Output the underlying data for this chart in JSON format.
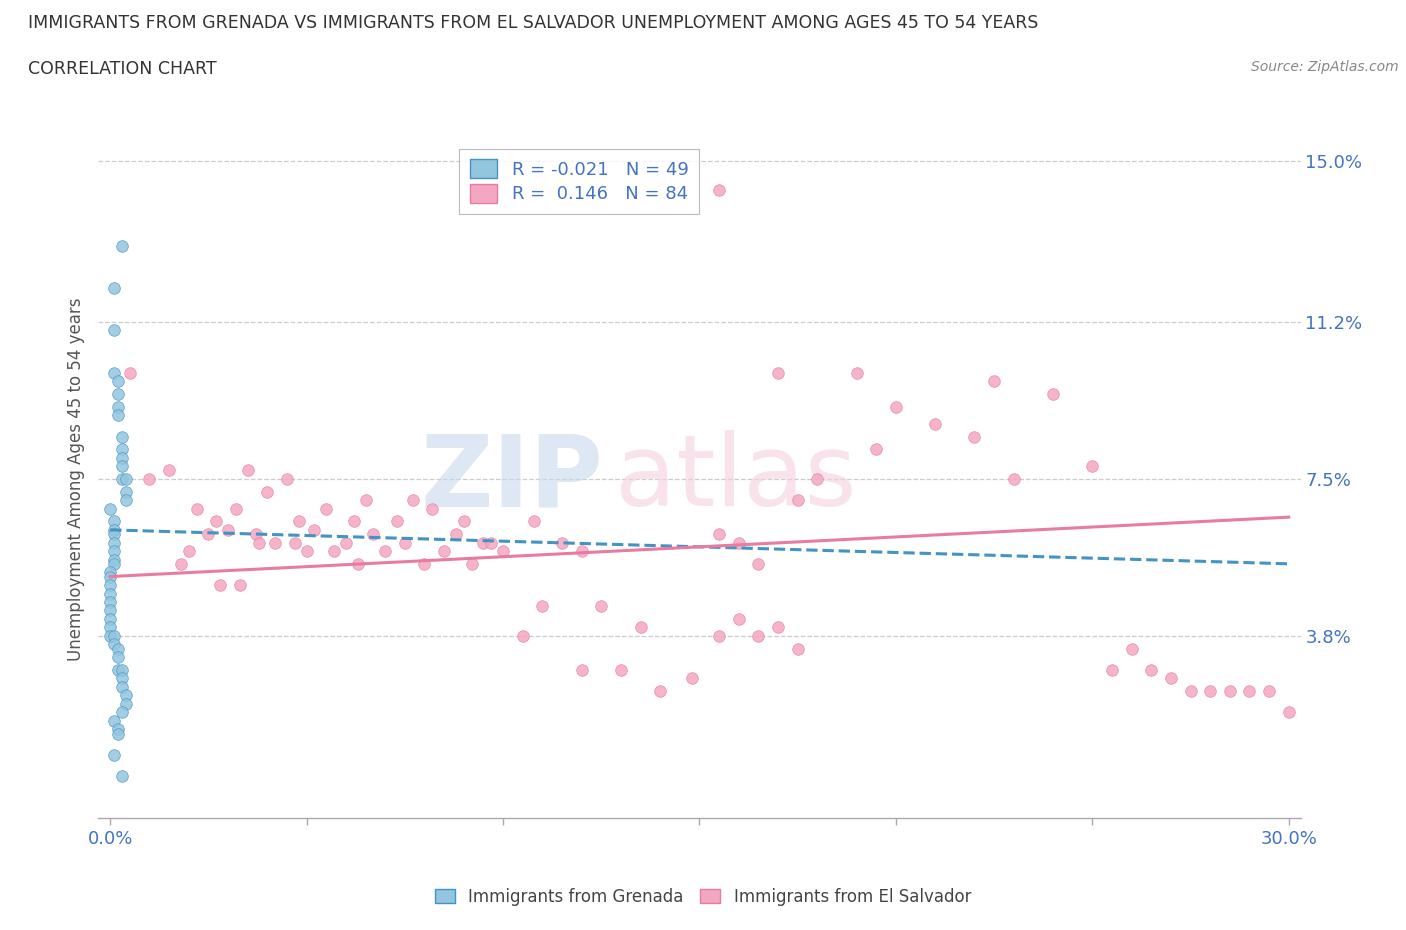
{
  "title_line1": "IMMIGRANTS FROM GRENADA VS IMMIGRANTS FROM EL SALVADOR UNEMPLOYMENT AMONG AGES 45 TO 54 YEARS",
  "title_line2": "CORRELATION CHART",
  "source_text": "Source: ZipAtlas.com",
  "ylabel": "Unemployment Among Ages 45 to 54 years",
  "xmin": 0.0,
  "xmax": 0.3,
  "ymin": 0.0,
  "ymax": 0.15,
  "yticks": [
    0.038,
    0.075,
    0.112,
    0.15
  ],
  "ytick_labels": [
    "3.8%",
    "7.5%",
    "11.2%",
    "15.0%"
  ],
  "xticks": [
    0.0,
    0.05,
    0.1,
    0.15,
    0.2,
    0.25,
    0.3
  ],
  "xtick_labels": [
    "0.0%",
    "",
    "",
    "",
    "",
    "",
    "30.0%"
  ],
  "watermark_zip": "ZIP",
  "watermark_atlas": "atlas",
  "grenada_color": "#92c5de",
  "elsalvador_color": "#f4a7c3",
  "grenada_line_color": "#4393c3",
  "elsalvador_line_color": "#e87ca0",
  "grid_color": "#cccccc",
  "title_color": "#333333",
  "tick_color": "#4472c4",
  "background_color": "#ffffff",
  "grenada_R": -0.021,
  "grenada_N": 49,
  "elsalvador_R": 0.146,
  "elsalvador_N": 84,
  "grenada_x": [
    0.003,
    0.001,
    0.001,
    0.001,
    0.002,
    0.002,
    0.002,
    0.002,
    0.003,
    0.003,
    0.003,
    0.003,
    0.003,
    0.004,
    0.004,
    0.004,
    0.0,
    0.001,
    0.001,
    0.001,
    0.001,
    0.001,
    0.001,
    0.001,
    0.0,
    0.0,
    0.0,
    0.0,
    0.0,
    0.0,
    0.0,
    0.0,
    0.0,
    0.001,
    0.001,
    0.002,
    0.002,
    0.002,
    0.003,
    0.003,
    0.003,
    0.004,
    0.004,
    0.003,
    0.001,
    0.002,
    0.002,
    0.001,
    0.003
  ],
  "grenada_y": [
    0.13,
    0.12,
    0.11,
    0.1,
    0.098,
    0.095,
    0.092,
    0.09,
    0.085,
    0.082,
    0.08,
    0.078,
    0.075,
    0.075,
    0.072,
    0.07,
    0.068,
    0.065,
    0.063,
    0.062,
    0.06,
    0.058,
    0.056,
    0.055,
    0.053,
    0.052,
    0.05,
    0.048,
    0.046,
    0.044,
    0.042,
    0.04,
    0.038,
    0.038,
    0.036,
    0.035,
    0.033,
    0.03,
    0.03,
    0.028,
    0.026,
    0.024,
    0.022,
    0.02,
    0.018,
    0.016,
    0.015,
    0.01,
    0.005
  ],
  "elsalvador_x": [
    0.155,
    0.005,
    0.01,
    0.015,
    0.018,
    0.02,
    0.022,
    0.025,
    0.027,
    0.028,
    0.03,
    0.032,
    0.033,
    0.035,
    0.037,
    0.038,
    0.04,
    0.042,
    0.045,
    0.047,
    0.048,
    0.05,
    0.052,
    0.055,
    0.057,
    0.06,
    0.062,
    0.063,
    0.065,
    0.067,
    0.07,
    0.073,
    0.075,
    0.077,
    0.08,
    0.082,
    0.085,
    0.088,
    0.09,
    0.092,
    0.095,
    0.097,
    0.1,
    0.105,
    0.108,
    0.11,
    0.115,
    0.12,
    0.125,
    0.13,
    0.135,
    0.14,
    0.148,
    0.155,
    0.16,
    0.165,
    0.17,
    0.175,
    0.18,
    0.19,
    0.195,
    0.2,
    0.21,
    0.22,
    0.225,
    0.23,
    0.24,
    0.25,
    0.255,
    0.26,
    0.265,
    0.27,
    0.275,
    0.28,
    0.285,
    0.29,
    0.295,
    0.3,
    0.155,
    0.16,
    0.165,
    0.17,
    0.175,
    0.12
  ],
  "elsalvador_y": [
    0.143,
    0.1,
    0.075,
    0.077,
    0.055,
    0.058,
    0.068,
    0.062,
    0.065,
    0.05,
    0.063,
    0.068,
    0.05,
    0.077,
    0.062,
    0.06,
    0.072,
    0.06,
    0.075,
    0.06,
    0.065,
    0.058,
    0.063,
    0.068,
    0.058,
    0.06,
    0.065,
    0.055,
    0.07,
    0.062,
    0.058,
    0.065,
    0.06,
    0.07,
    0.055,
    0.068,
    0.058,
    0.062,
    0.065,
    0.055,
    0.06,
    0.06,
    0.058,
    0.038,
    0.065,
    0.045,
    0.06,
    0.058,
    0.045,
    0.03,
    0.04,
    0.025,
    0.028,
    0.062,
    0.06,
    0.055,
    0.1,
    0.07,
    0.075,
    0.1,
    0.082,
    0.092,
    0.088,
    0.085,
    0.098,
    0.075,
    0.095,
    0.078,
    0.03,
    0.035,
    0.03,
    0.028,
    0.025,
    0.025,
    0.025,
    0.025,
    0.025,
    0.02,
    0.038,
    0.042,
    0.038,
    0.04,
    0.035,
    0.03
  ]
}
